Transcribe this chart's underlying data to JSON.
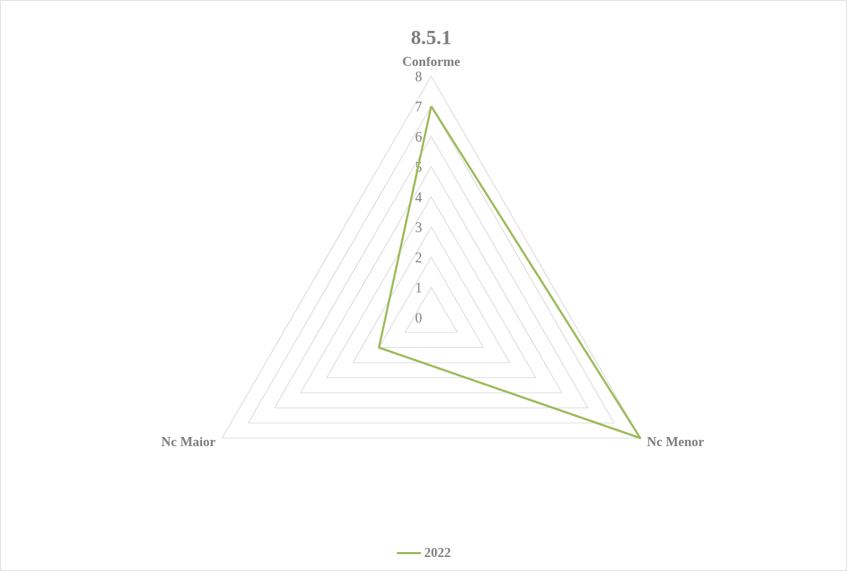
{
  "chart_data": {
    "type": "radar",
    "title": "8.5.1",
    "categories": [
      "Conforme",
      "Nc Menor",
      "Nc Maior"
    ],
    "series": [
      {
        "name": "2022",
        "color": "#9bbb59",
        "values": [
          7,
          8,
          2
        ]
      }
    ],
    "ylim": [
      0,
      8
    ],
    "yticks": [
      0,
      1,
      2,
      3,
      4,
      5,
      6,
      7,
      8
    ],
    "grid": true,
    "legend": "bottom",
    "marker": "none"
  }
}
